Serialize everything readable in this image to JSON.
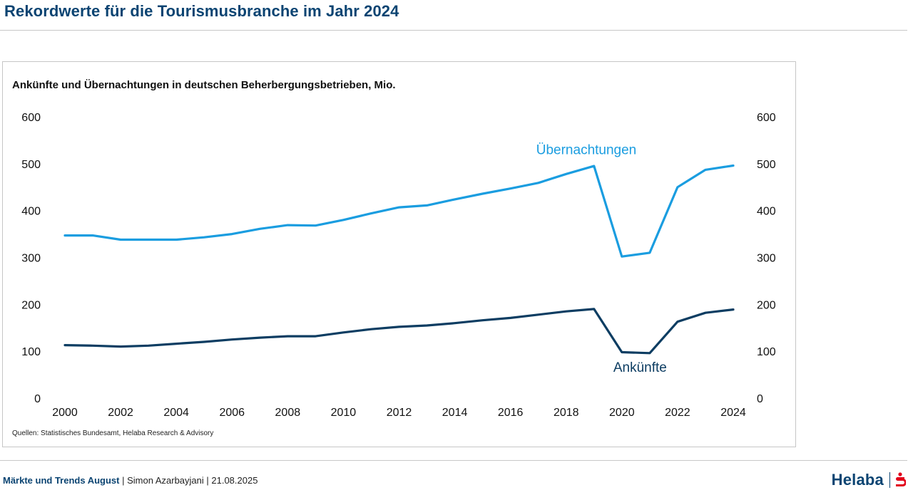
{
  "header": {
    "title": "Rekordwerte für die Tourismusbranche im Jahr 2024"
  },
  "footer": {
    "series_name": "Märkte und Trends August",
    "sep1": " | ",
    "author": "Simon Azarbayjani",
    "sep2": " | ",
    "date": "21.08.2025"
  },
  "brand": {
    "name": "Helaba",
    "logo_icon": "sparkasse-s-icon"
  },
  "colors": {
    "title": "#0b4472",
    "uebernachtungen": "#1a9de0",
    "ankuenfte": "#0d3d62",
    "brand_red": "#e2001a"
  },
  "chart_data": {
    "type": "line",
    "title": "Ankünfte und Übernachtungen in deutschen Beherbergungsbetrieben, Mio.",
    "source": "Quellen: Statistisches Bundesamt, Helaba Research & Advisory",
    "x": [
      2000,
      2001,
      2002,
      2003,
      2004,
      2005,
      2006,
      2007,
      2008,
      2009,
      2010,
      2011,
      2012,
      2013,
      2014,
      2015,
      2016,
      2017,
      2018,
      2019,
      2020,
      2021,
      2022,
      2023,
      2024
    ],
    "x_tick_labels": [
      "2000",
      "2002",
      "2004",
      "2006",
      "2008",
      "2010",
      "2012",
      "2014",
      "2016",
      "2018",
      "2020",
      "2022",
      "2024"
    ],
    "y_tick_labels": [
      "0",
      "100",
      "200",
      "300",
      "400",
      "500",
      "600"
    ],
    "ylim": [
      0,
      600
    ],
    "grid": false,
    "y_axis_both_sides": true,
    "series": [
      {
        "name": "Übernachtungen",
        "values": [
          347,
          347,
          338,
          338,
          338,
          343,
          350,
          361,
          369,
          368,
          380,
          394,
          407,
          411,
          424,
          436,
          447,
          459,
          478,
          495,
          302,
          310,
          450,
          487,
          496
        ]
      },
      {
        "name": "Ankünfte",
        "values": [
          113,
          112,
          110,
          112,
          116,
          120,
          125,
          129,
          132,
          132,
          140,
          147,
          152,
          155,
          160,
          166,
          171,
          178,
          185,
          190,
          98,
          96,
          163,
          182,
          189
        ]
      }
    ]
  }
}
